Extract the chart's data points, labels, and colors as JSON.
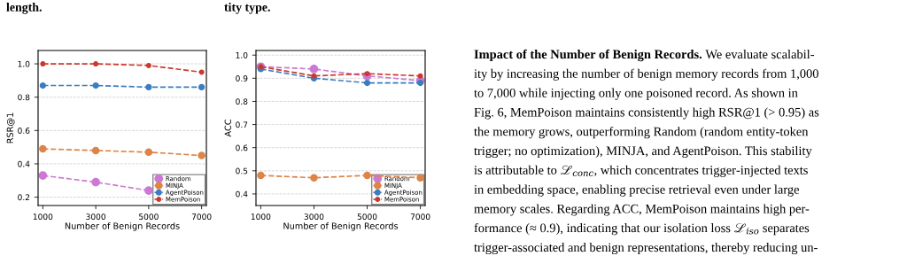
{
  "chart_data": [
    {
      "type": "line",
      "annotations": [
        "length."
      ],
      "xlabel": "Number of Benign Records",
      "ylabel": "RSR@1",
      "x": [
        1000,
        3000,
        5000,
        7000
      ],
      "xlim": [
        820,
        7180
      ],
      "xticks": [
        1000,
        3000,
        5000,
        7000
      ],
      "ylim": [
        0.15,
        1.08
      ],
      "yticks": [
        0.2,
        0.4,
        0.6,
        0.8,
        {
          "value": 1.0,
          "label": "1.0"
        }
      ],
      "grid": "y",
      "legend": "bottom right",
      "marker": "circle",
      "line_style": "dashed",
      "series": [
        {
          "name": "Random",
          "color": "#cc79d4",
          "values": [
            0.33,
            0.29,
            0.24,
            null
          ]
        },
        {
          "name": "MINJA",
          "color": "#dd8447",
          "values": [
            0.49,
            0.48,
            0.47,
            0.45
          ]
        },
        {
          "name": "AgentPoison",
          "color": "#3b7dc0",
          "values": [
            0.87,
            0.87,
            0.86,
            0.86
          ]
        },
        {
          "name": "MemPoison",
          "color": "#c93a2e",
          "values": [
            1.0,
            1.0,
            0.99,
            0.95
          ]
        }
      ]
    },
    {
      "type": "line",
      "annotations": [
        "tity type."
      ],
      "xlabel": "Number of Benign Records",
      "ylabel": "ACC",
      "x": [
        1000,
        3000,
        5000,
        7000
      ],
      "xlim": [
        820,
        7180
      ],
      "xticks": [
        1000,
        3000,
        5000,
        7000
      ],
      "ylim": [
        0.35,
        1.02
      ],
      "yticks": [
        0.4,
        0.5,
        0.6,
        0.7,
        0.8,
        0.9,
        {
          "value": 1.0,
          "label": "1.0"
        }
      ],
      "grid": "y",
      "legend": "bottom right",
      "marker": "circle",
      "line_style": "dashed",
      "series": [
        {
          "name": "Random",
          "color": "#cc79d4",
          "values": [
            0.95,
            0.94,
            0.91,
            0.89
          ]
        },
        {
          "name": "MINJA",
          "color": "#dd8447",
          "values": [
            0.48,
            0.47,
            0.48,
            0.47
          ]
        },
        {
          "name": "AgentPoison",
          "color": "#3b7dc0",
          "values": [
            0.94,
            0.9,
            0.88,
            0.88
          ]
        },
        {
          "name": "MemPoison",
          "color": "#c93a2e",
          "values": [
            0.95,
            0.91,
            0.92,
            0.91
          ]
        }
      ]
    },
    {
      "type": "other",
      "title": "Impact of the Number of Benign Records.",
      "annotations": [
        "We evaluate scalabil-",
        "ity by increasing the number of benign memory records from 1,000",
        "to 7,000 while injecting only one poisoned record. As shown in",
        "Fig. 6, MemPoison maintains consistently high RSR@1 (> 0.95) as",
        "the memory grows, outperforming Random (random entity-token",
        "trigger; no optimization), MINJA, and AgentPoison. This stability",
        "is attributable to ℒ$_{conc}$, which concentrates trigger-injected texts",
        "in embedding space, enabling precise retrieval even under large",
        "memory scales. Regarding ACC, MemPoison maintains high per-",
        "formance (≈ 0.9), indicating that our isolation loss ℒ$_{iso}$ separates",
        "trigger-associated and benign representations, thereby reducing un-"
      ]
    }
  ]
}
